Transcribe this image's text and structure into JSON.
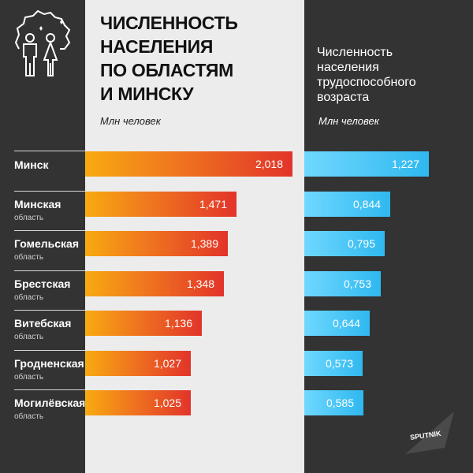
{
  "left_chart": {
    "title_lines": [
      "ЧИСЛЕННОСТЬ",
      "НАСЕЛЕНИЯ",
      "ПО ОБЛАСТЯМ",
      "И МИНСКУ"
    ],
    "unit": "Млн человек",
    "color": "#e2342a"
  },
  "right_chart": {
    "title_lines": [
      "Численность",
      "населения",
      "трудоспособного",
      "возраста"
    ],
    "unit": "Млн человек",
    "color": "#2fb8ef"
  },
  "brand": "SPUTNIK",
  "chart_data": [
    {
      "type": "bar",
      "orientation": "horizontal",
      "title": "ЧИСЛЕННОСТЬ НАСЕЛЕНИЯ ПО ОБЛАСТЯМ И МИНСКУ",
      "unit": "Млн человек",
      "categories": [
        "Минск",
        "Минская область",
        "Гомельская область",
        "Брестская область",
        "Витебская область",
        "Гродненская область",
        "Могилёвская область"
      ],
      "values": [
        2.018,
        1.471,
        1.389,
        1.348,
        1.136,
        1.027,
        1.025
      ],
      "value_labels": [
        "2,018",
        "1,471",
        "1,389",
        "1,348",
        "1,136",
        "1,027",
        "1,025"
      ],
      "xlim": [
        0,
        2.1
      ],
      "grid": false
    },
    {
      "type": "bar",
      "orientation": "horizontal",
      "title": "Численность населения трудоспособного возраста",
      "unit": "Млн человек",
      "categories": [
        "Минск",
        "Минская область",
        "Гомельская область",
        "Брестская область",
        "Витебская область",
        "Гродненская область",
        "Могилёвская область"
      ],
      "values": [
        1.227,
        0.844,
        0.795,
        0.753,
        0.644,
        0.573,
        0.585
      ],
      "value_labels": [
        "1,227",
        "0,844",
        "0,795",
        "0,753",
        "0,644",
        "0,573",
        "0,585"
      ],
      "xlim": [
        0,
        1.35
      ],
      "grid": false
    }
  ],
  "rows": [
    {
      "name": "Минск",
      "sub": ""
    },
    {
      "name": "Минская",
      "sub": "область"
    },
    {
      "name": "Гомельская",
      "sub": "область"
    },
    {
      "name": "Брестская",
      "sub": "область"
    },
    {
      "name": "Витебская",
      "sub": "область"
    },
    {
      "name": "Гродненская",
      "sub": "область"
    },
    {
      "name": "Могилёвская",
      "sub": "область"
    }
  ]
}
